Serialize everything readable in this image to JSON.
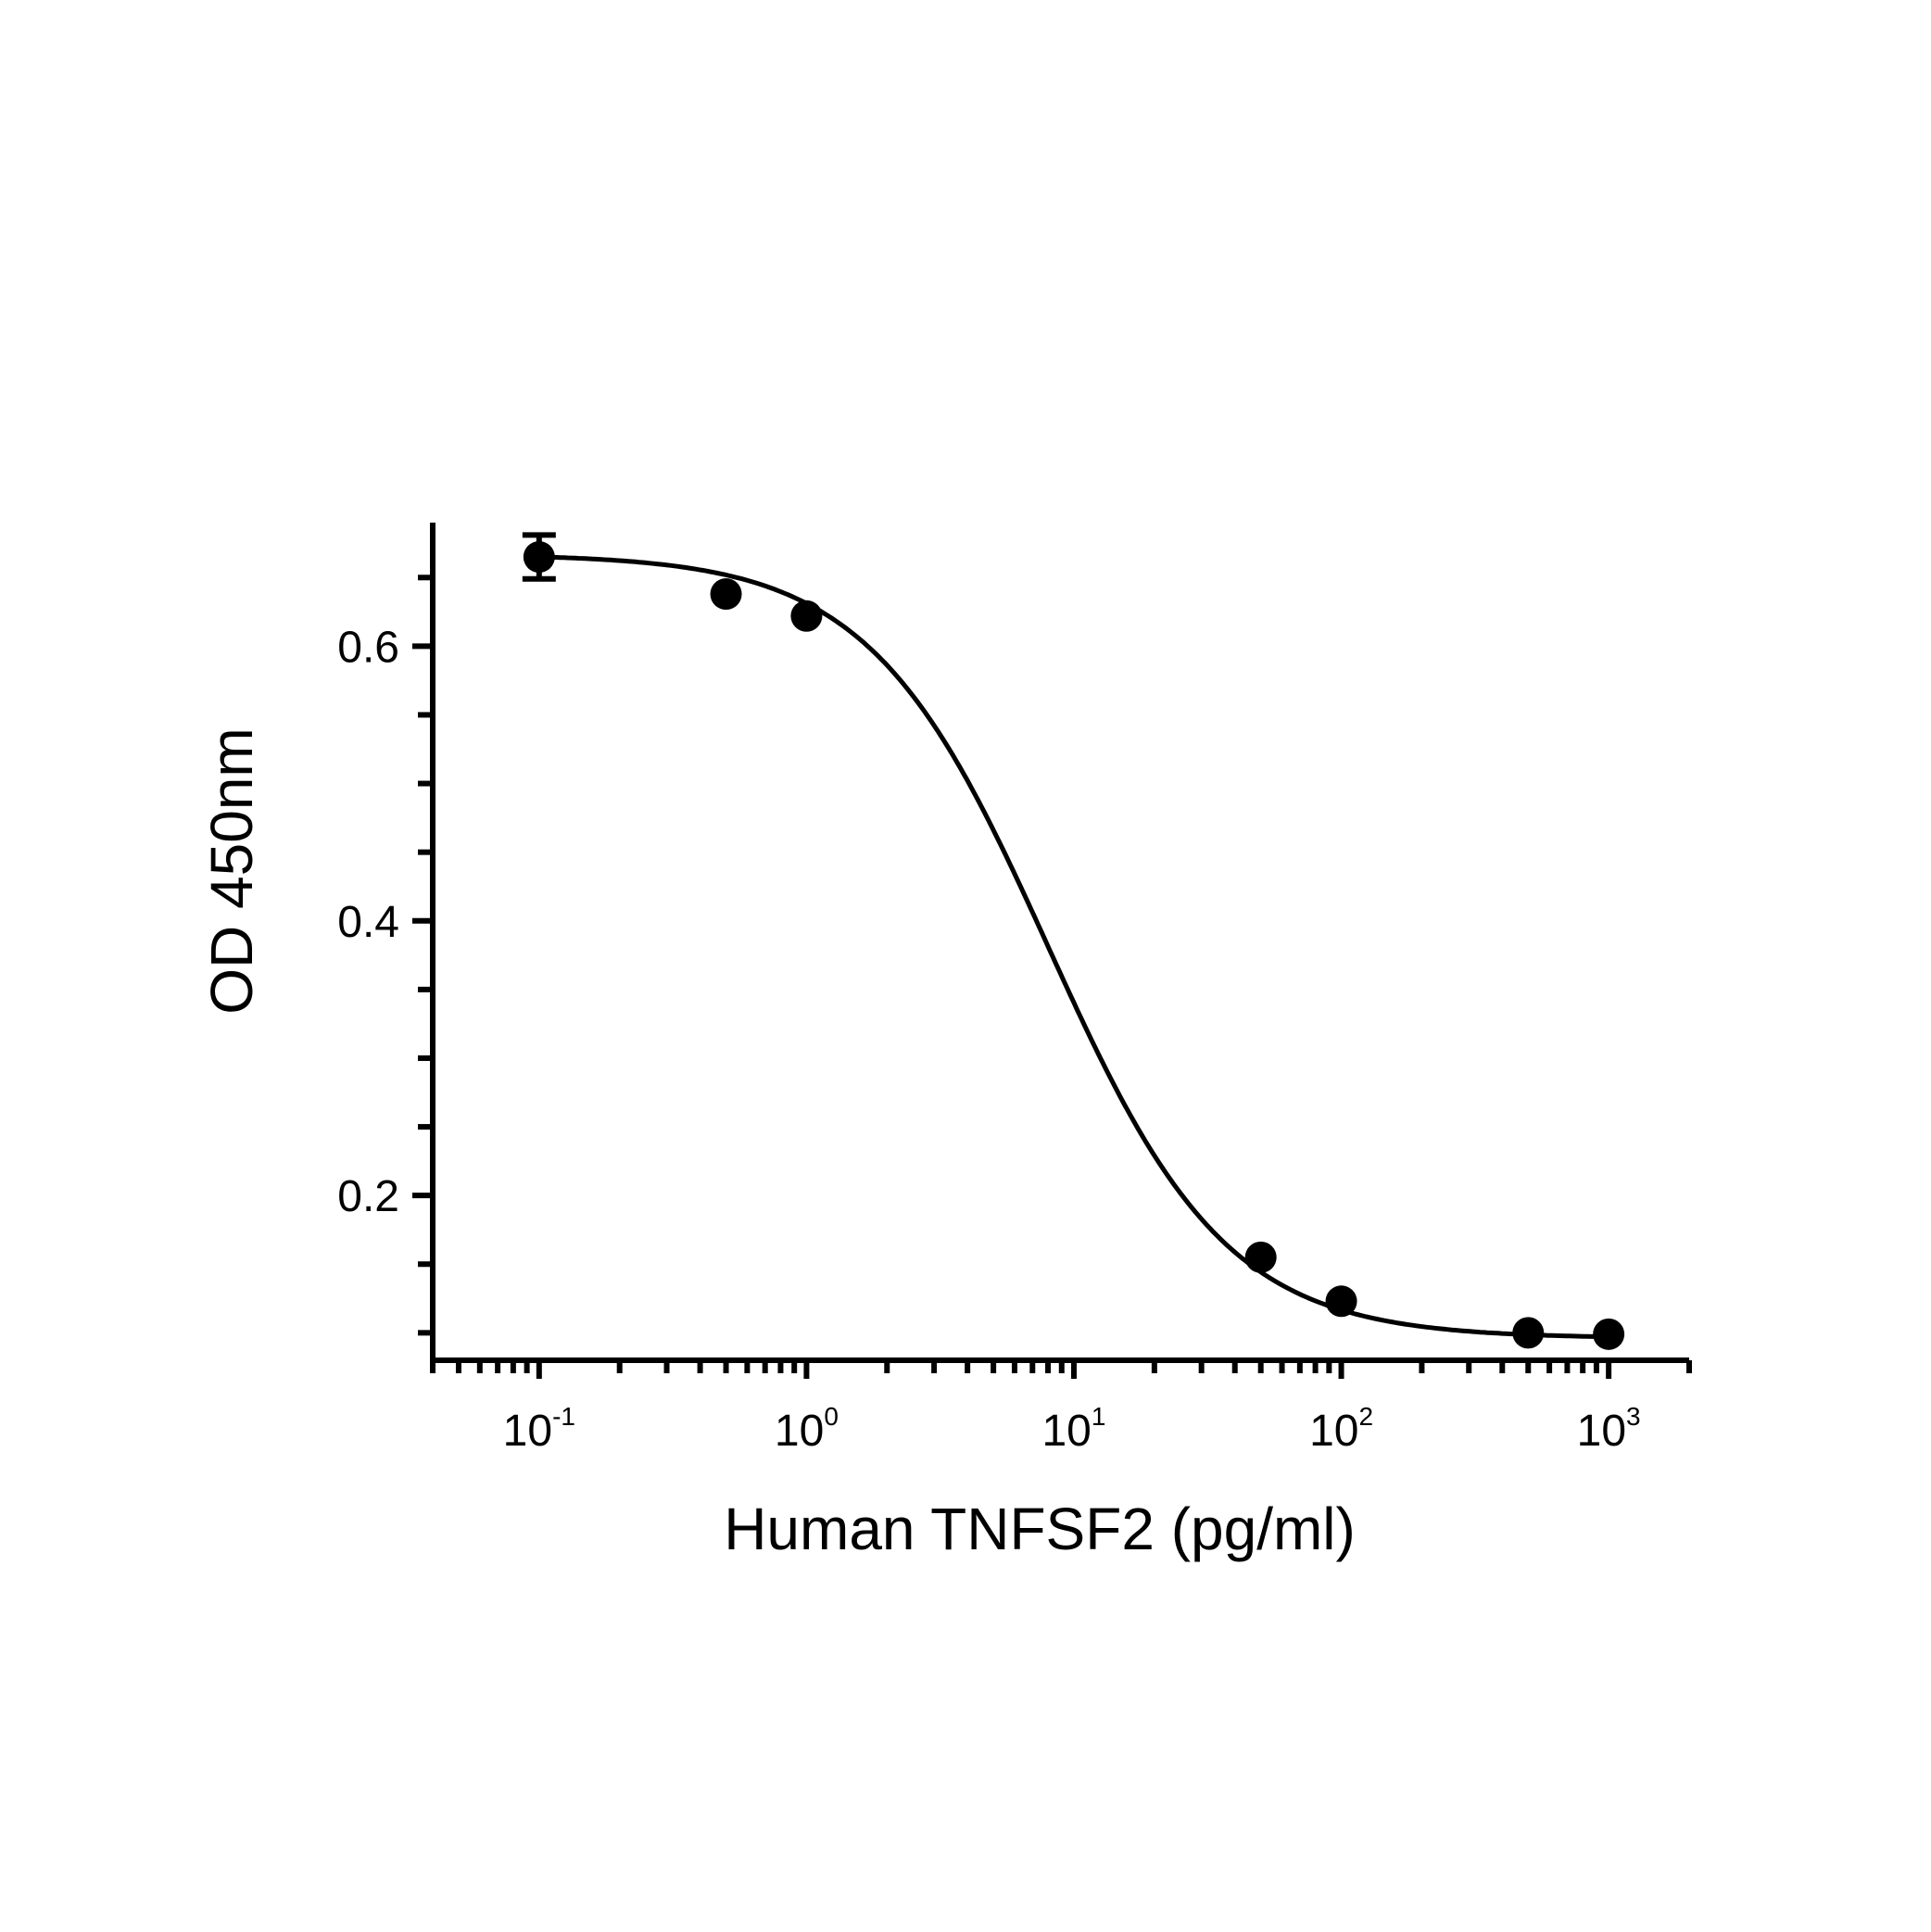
{
  "chart_data": {
    "type": "scatter",
    "xlabel": "Human TNFSF2 (pg/ml)",
    "ylabel": "OD 450nm",
    "x_scale": "log",
    "xlim": [
      0.04,
      2000
    ],
    "ylim": [
      0.08,
      0.69
    ],
    "x_tick_labels": [
      {
        "value": 0.1,
        "base": "10",
        "exp": "-1"
      },
      {
        "value": 1,
        "base": "10",
        "exp": "0"
      },
      {
        "value": 10,
        "base": "10",
        "exp": "1"
      },
      {
        "value": 100,
        "base": "10",
        "exp": "2"
      },
      {
        "value": 1000,
        "base": "10",
        "exp": "3"
      }
    ],
    "y_ticks": [
      0.2,
      0.4,
      0.6
    ],
    "y_tick_labels": [
      "0.2",
      "0.4",
      "0.6"
    ],
    "points": [
      {
        "x": 0.1,
        "y": 0.665,
        "err": 0.016
      },
      {
        "x": 0.5,
        "y": 0.638,
        "err": 0
      },
      {
        "x": 1,
        "y": 0.622,
        "err": 0
      },
      {
        "x": 50,
        "y": 0.155,
        "err": 0
      },
      {
        "x": 100,
        "y": 0.123,
        "err": 0
      },
      {
        "x": 500,
        "y": 0.1,
        "err": 0
      },
      {
        "x": 1000,
        "y": 0.099,
        "err": 0
      }
    ],
    "fit": {
      "model": "4PL",
      "top": 0.667,
      "bottom": 0.096,
      "ec50": 8.0,
      "hill": 1.3
    },
    "grid": false,
    "legend": false
  }
}
